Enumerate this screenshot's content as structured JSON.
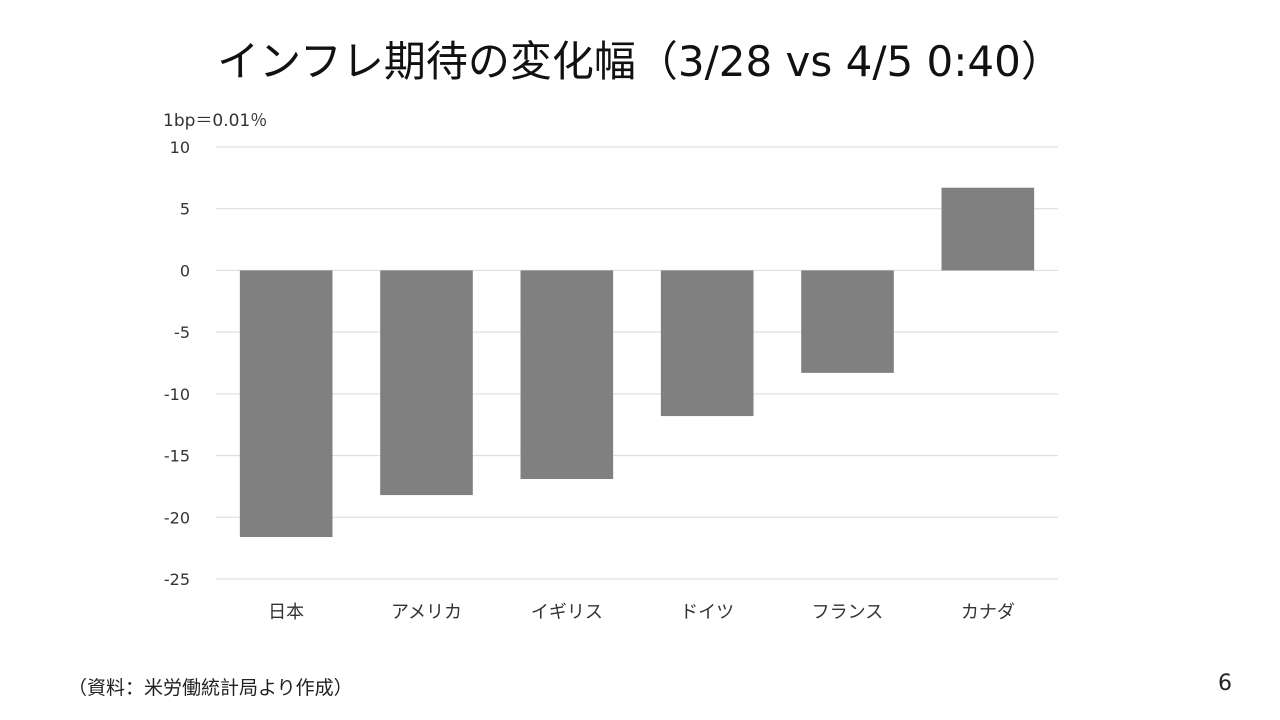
{
  "chart_data": {
    "type": "bar",
    "title": "インフレ期待の変化幅（3/28 vs 4/5 0:40）",
    "unit_note": "1bp＝0.01％",
    "categories": [
      "日本",
      "アメリカ",
      "イギリス",
      "ドイツ",
      "フランス",
      "カナダ"
    ],
    "values": [
      -21.6,
      -18.2,
      -16.9,
      -11.8,
      -8.3,
      6.7
    ],
    "ylim": [
      -25,
      10
    ],
    "yticks": [
      10,
      5,
      0,
      -5,
      -10,
      -15,
      -20,
      -25
    ],
    "grid": true,
    "bar_color": "#808080",
    "xlabel": "",
    "ylabel": ""
  },
  "footer": {
    "source": "（資料：米労働統計局より作成）",
    "page_number": "6"
  }
}
